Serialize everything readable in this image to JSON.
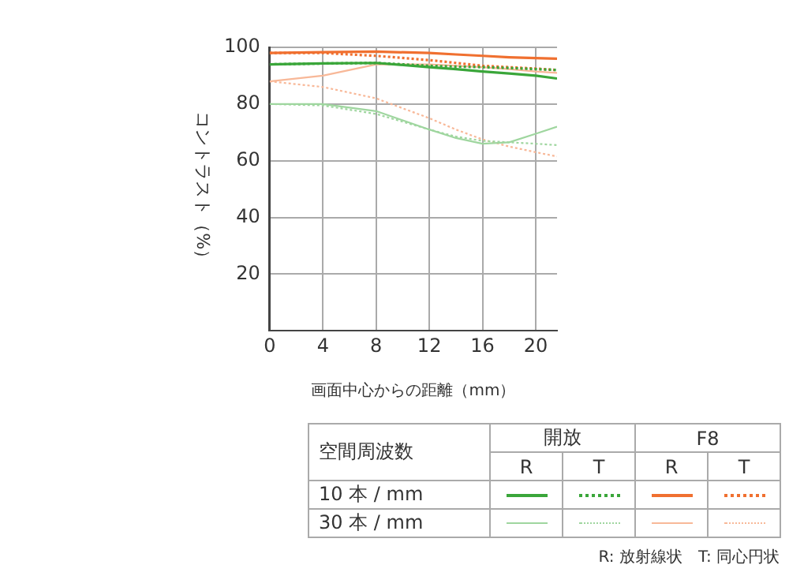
{
  "chart_data": {
    "type": "line",
    "xlabel": "画面中心からの距離（mm）",
    "ylabel": "コントラスト（%）",
    "x": [
      0,
      4,
      8,
      12,
      14,
      16,
      18,
      20,
      21.6
    ],
    "xlim": [
      0,
      21.6
    ],
    "xticks": [
      0,
      4,
      8,
      12,
      16,
      20
    ],
    "ylim": [
      0,
      100
    ],
    "yticks": [
      20,
      40,
      60,
      80,
      100
    ],
    "grid": true,
    "legend": false,
    "marker": "none",
    "series": [
      {
        "color": "#3aa63a",
        "line_style": "solid",
        "values": [
          94,
          94.3,
          94.5,
          93,
          92.3,
          91.5,
          90.8,
          90,
          89
        ]
      },
      {
        "color": "#3aa63a",
        "line_style": "dotted",
        "values": [
          94,
          94.3,
          94.5,
          93.5,
          93.2,
          93,
          92.7,
          92.3,
          92
        ]
      },
      {
        "color": "#f07030",
        "line_style": "solid",
        "values": [
          98,
          98.3,
          98.5,
          98,
          97.5,
          97,
          96.5,
          96.2,
          96
        ]
      },
      {
        "color": "#f07030",
        "line_style": "dotted",
        "values": [
          98,
          98,
          97,
          95.5,
          94.5,
          93.5,
          93,
          92.5,
          92
        ]
      },
      {
        "color": "#9fd69f",
        "line_style": "solid",
        "values": [
          80,
          80,
          77.5,
          71,
          68,
          66,
          66.5,
          69.5,
          72
        ]
      },
      {
        "color": "#9fd69f",
        "line_style": "dotted",
        "values": [
          80,
          79.5,
          76.5,
          71,
          68.5,
          67,
          66.5,
          66,
          65.5
        ]
      },
      {
        "color": "#f8b898",
        "line_style": "solid",
        "values": [
          88,
          90,
          94,
          94,
          93.5,
          93,
          92.3,
          91.5,
          91
        ]
      },
      {
        "color": "#f8b898",
        "line_style": "dotted",
        "values": [
          88,
          86,
          82,
          75,
          71,
          67.5,
          65,
          63,
          61.5
        ]
      }
    ],
    "annotations": [
      "空間周波数",
      "開放",
      "F8",
      "R",
      "T",
      "10 本 / mm",
      "30 本 / mm",
      "R: 放射線状　T: 同心円状"
    ]
  }
}
